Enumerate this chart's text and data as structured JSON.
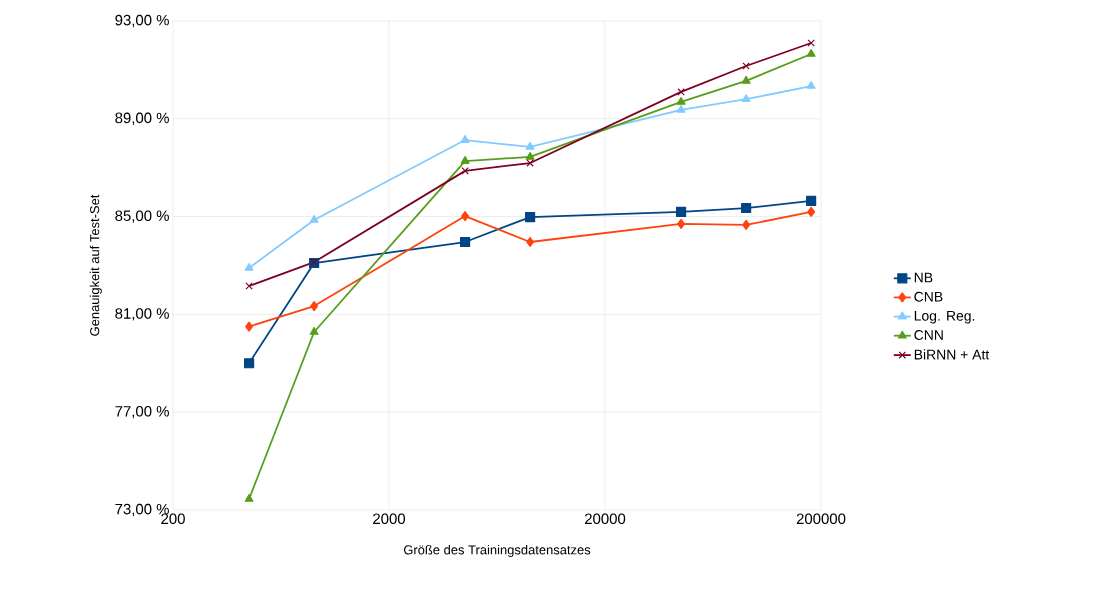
{
  "chart_data": {
    "type": "line",
    "xlabel": "Größe des Trainingsdatensatzes",
    "ylabel": "Genauigkeit auf Test-Set",
    "log": "x",
    "grid": true,
    "legend": "right",
    "line_style": "solid",
    "x": [
      450,
      900,
      4500,
      9000,
      45000,
      90000,
      180000
    ],
    "xlim": [
      200,
      200000
    ],
    "xticks": [
      200,
      2000,
      20000,
      200000
    ],
    "ylim": [
      73,
      93
    ],
    "yticks": [
      {
        "value": 73,
        "label": "73,00 %"
      },
      {
        "value": 77,
        "label": "77,00 %"
      },
      {
        "value": 81,
        "label": "81,00 %"
      },
      {
        "value": 85,
        "label": "85,00 %"
      },
      {
        "value": 89,
        "label": "89,00 %"
      },
      {
        "value": 93,
        "label": "93,00 %"
      }
    ],
    "series": [
      {
        "name": "NB",
        "color": "#004586",
        "marker": "square",
        "values": [
          79.0,
          83.1,
          83.96,
          84.98,
          85.19,
          85.35,
          85.64
        ]
      },
      {
        "name": "CNB",
        "color": "#ff420e",
        "marker": "diamond",
        "values": [
          80.5,
          81.34,
          85.02,
          83.96,
          84.7,
          84.66,
          85.19
        ]
      },
      {
        "name": "Log. Reg.",
        "color": "#83caff",
        "marker": "triangle",
        "values": [
          82.9,
          84.86,
          88.13,
          87.85,
          89.36,
          89.8,
          90.34
        ]
      },
      {
        "name": "CNN",
        "color": "#579d1c",
        "marker": "triangle",
        "values": [
          73.45,
          80.28,
          87.27,
          87.44,
          89.69,
          90.55,
          91.65
        ]
      },
      {
        "name": "BiRNN + Att",
        "color": "#7e0021",
        "marker": "cross",
        "values": [
          82.16,
          83.14,
          86.87,
          87.19,
          90.1,
          91.16,
          92.1
        ]
      }
    ]
  }
}
